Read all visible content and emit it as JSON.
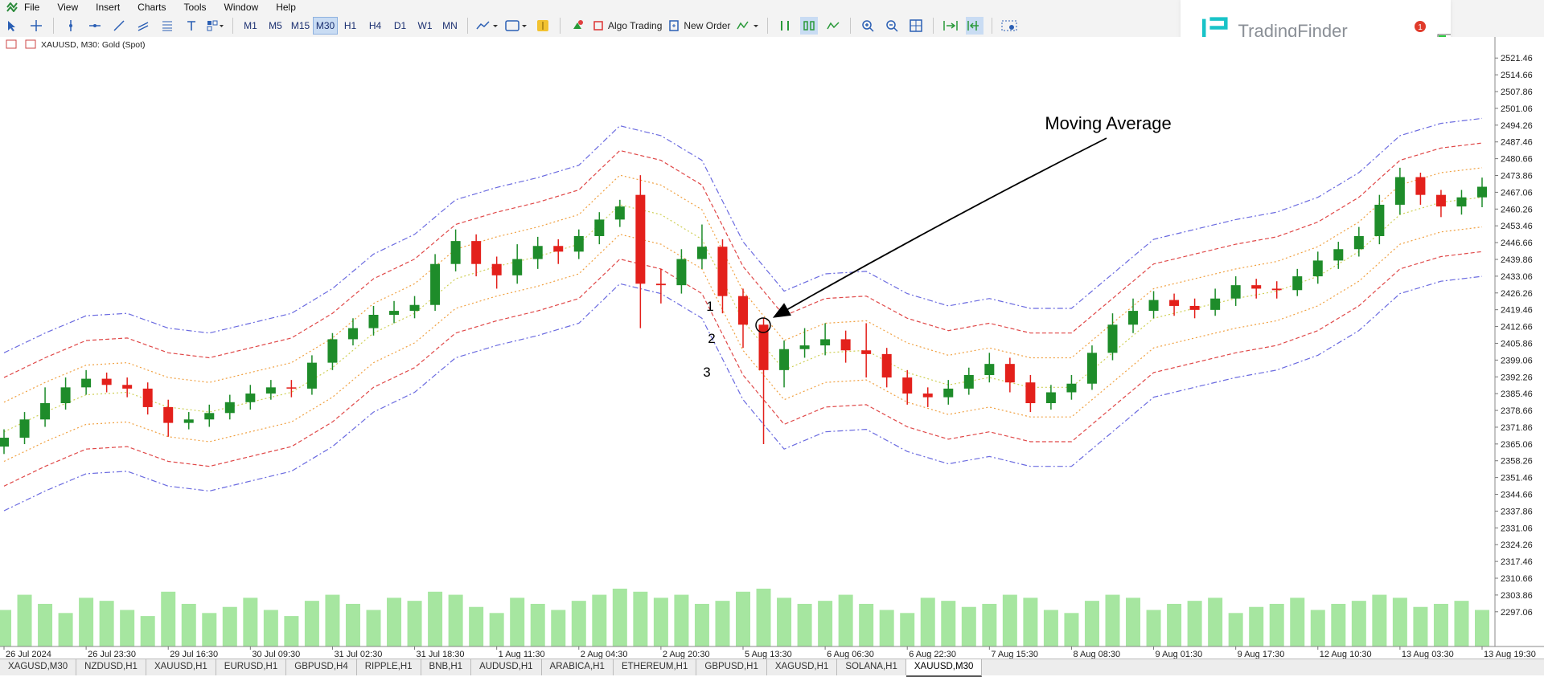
{
  "menu": [
    "File",
    "View",
    "Insert",
    "Charts",
    "Tools",
    "Window",
    "Help"
  ],
  "toolbar": {
    "timeframes": [
      "M1",
      "M5",
      "M15",
      "M30",
      "H1",
      "H4",
      "D1",
      "W1",
      "MN"
    ],
    "algo_trading": "Algo Trading",
    "new_order": "New Order"
  },
  "logo": "TradingFinder",
  "tabs": [
    "XAGUSD,M30",
    "NZDUSD,H1",
    "XAUUSD,H1",
    "EURUSD,H1",
    "GBPUSD,H4",
    "RIPPLE,H1",
    "BNB,H1",
    "AUDUSD,H1",
    "ARABICA,H1",
    "ETHEREUM,H1",
    "GBPUSD,H1",
    "XAGUSD,H1",
    "SOLANA,H1",
    "XAUUSD,M30"
  ],
  "chart_data": {
    "type": "candlestick",
    "symbol_label": "XAUUSD, M30:  Gold (Spot)",
    "categories": [
      "26 Jul 2024",
      null,
      null,
      null,
      "26 Jul 23:30",
      null,
      null,
      null,
      "29 Jul 16:30",
      null,
      null,
      null,
      "30 Jul 09:30",
      null,
      null,
      null,
      "31 Jul 02:30",
      null,
      null,
      null,
      "31 Jul 18:30",
      null,
      null,
      null,
      "1 Aug 11:30",
      null,
      null,
      null,
      "2 Aug 04:30",
      null,
      null,
      null,
      "2 Aug 20:30",
      null,
      null,
      null,
      "5 Aug 13:30",
      null,
      null,
      null,
      "6 Aug 06:30",
      null,
      null,
      null,
      "6 Aug 22:30",
      null,
      null,
      null,
      "7 Aug 15:30",
      null,
      null,
      null,
      "8 Aug 08:30",
      null,
      null,
      null,
      "9 Aug 01:30",
      null,
      null,
      null,
      "9 Aug 17:30",
      null,
      null,
      null,
      "12 Aug 10:30",
      null,
      null,
      null,
      "13 Aug 03:30",
      null,
      null,
      null,
      "13 Aug 19:30"
    ],
    "open": [
      2364,
      2367.6,
      2375,
      2381.6,
      2388,
      2391.5,
      2389,
      2387.5,
      2380,
      2373.6,
      2375,
      2377.6,
      2382,
      2385.5,
      2388,
      2387.5,
      2398,
      2407.5,
      2412,
      2417.4,
      2419,
      2421.4,
      2438,
      2447.3,
      2438,
      2433.4,
      2440,
      2445.3,
      2443,
      2449.3,
      2456,
      2466,
      2430,
      2429.4,
      2440,
      2445,
      2425,
      2413.4,
      2395,
      2403.5,
      2405,
      2407.5,
      2403,
      2401.5,
      2392,
      2385.5,
      2384,
      2387.5,
      2393,
      2397.5,
      2390,
      2381.6,
      2386,
      2389.5,
      2402,
      2413.4,
      2419,
      2423.4,
      2421,
      2419.4,
      2424,
      2429.4,
      2428,
      2427.4,
      2433,
      2439.4,
      2444,
      2449.3,
      2462,
      2473.2,
      2466,
      2461.3,
      2465
    ],
    "high": [
      2371,
      2378,
      2388,
      2392,
      2395,
      2394,
      2392,
      2390,
      2383,
      2378,
      2381,
      2385,
      2389,
      2391,
      2391,
      2401,
      2410,
      2416,
      2421,
      2423,
      2425,
      2442,
      2452,
      2450,
      2441,
      2446,
      2449,
      2448,
      2452,
      2459,
      2464,
      2474,
      2436,
      2444,
      2454,
      2448,
      2428,
      2416,
      2407,
      2412,
      2414,
      2411,
      2414,
      2404,
      2395,
      2388,
      2391,
      2396,
      2402,
      2400,
      2393,
      2389,
      2393,
      2405,
      2418,
      2424,
      2427,
      2426,
      2424,
      2428,
      2433,
      2432,
      2431,
      2436,
      2443,
      2447,
      2453,
      2466,
      2477,
      2475,
      2468,
      2468,
      2473
    ],
    "low": [
      2361,
      2365,
      2372,
      2379,
      2385,
      2386,
      2384,
      2377,
      2368,
      2371,
      2372,
      2375,
      2379,
      2383,
      2384,
      2385,
      2395,
      2405,
      2409,
      2414,
      2416,
      2419,
      2435,
      2433,
      2428,
      2430,
      2436,
      2438,
      2440,
      2446,
      2453,
      2412,
      2422,
      2426,
      2436,
      2418,
      2404,
      2365,
      2388,
      2400,
      2401,
      2398,
      2392,
      2388,
      2381,
      2380,
      2381,
      2385,
      2390,
      2386,
      2378,
      2379,
      2383,
      2387,
      2399,
      2410,
      2416,
      2417,
      2416,
      2417,
      2421,
      2424,
      2424,
      2425,
      2430,
      2436,
      2441,
      2446,
      2458,
      2462,
      2457,
      2458,
      2461
    ],
    "close": [
      2367.6,
      2375,
      2381.6,
      2388,
      2391.5,
      2389,
      2387.5,
      2380,
      2373.6,
      2375,
      2377.6,
      2382,
      2385.5,
      2388,
      2387.5,
      2398,
      2407.5,
      2412,
      2417.4,
      2419,
      2421.4,
      2438,
      2447.3,
      2438,
      2433.4,
      2440,
      2445.3,
      2443,
      2449.3,
      2456,
      2461.3,
      2430,
      2429.4,
      2440,
      2445,
      2425,
      2413.4,
      2395,
      2403.5,
      2405,
      2407.5,
      2403,
      2401.5,
      2392,
      2385.5,
      2384,
      2387.5,
      2393,
      2397.5,
      2390,
      2381.6,
      2386,
      2389.5,
      2402,
      2413.4,
      2419,
      2423.4,
      2421,
      2419.4,
      2424,
      2429.4,
      2428,
      2427.4,
      2433,
      2439.4,
      2444,
      2449.3,
      2462,
      2473.2,
      2466,
      2461.3,
      2465,
      2469.3
    ],
    "up_color": "#1e8c2a",
    "down_color": "#e3201b",
    "volume": [
      60,
      85,
      70,
      55,
      80,
      75,
      60,
      50,
      90,
      70,
      55,
      65,
      80,
      60,
      50,
      75,
      85,
      70,
      60,
      80,
      75,
      90,
      85,
      65,
      55,
      80,
      70,
      60,
      75,
      85,
      95,
      90,
      80,
      85,
      70,
      75,
      90,
      95,
      80,
      70,
      75,
      85,
      70,
      60,
      55,
      80,
      75,
      65,
      70,
      85,
      80,
      60,
      55,
      75,
      85,
      80,
      60,
      70,
      75,
      80,
      55,
      65,
      70,
      80,
      60,
      70,
      75,
      85,
      80,
      65,
      70,
      75,
      60
    ],
    "volume_color": "#a6e6a0",
    "bands": {
      "x": [
        0,
        2,
        4,
        6,
        8,
        10,
        12,
        14,
        16,
        18,
        20,
        22,
        24,
        26,
        28,
        30,
        32,
        34,
        36,
        38,
        40,
        42,
        44,
        46,
        48,
        50,
        52,
        54,
        56,
        58,
        60,
        62,
        64,
        66,
        68,
        70,
        72
      ],
      "series": [
        {
          "color": "#6b6be0",
          "values": [
            2402,
            2410,
            2417,
            2418,
            2412,
            2410,
            2414,
            2418,
            2428,
            2442,
            2450,
            2464,
            2469,
            2473,
            2478,
            2494,
            2490,
            2480,
            2447,
            2427,
            2434,
            2435,
            2426,
            2421,
            2424,
            2420,
            2420,
            2434,
            2448,
            2452,
            2456,
            2459,
            2465,
            2475,
            2490,
            2495,
            2497
          ]
        },
        {
          "color": "#e04848",
          "values": [
            2392,
            2400,
            2407,
            2408,
            2402,
            2400,
            2404,
            2408,
            2418,
            2432,
            2440,
            2454,
            2459,
            2463,
            2468,
            2484,
            2480,
            2470,
            2437,
            2417,
            2424,
            2425,
            2416,
            2411,
            2414,
            2410,
            2410,
            2424,
            2438,
            2442,
            2446,
            2449,
            2455,
            2465,
            2480,
            2485,
            2487
          ]
        },
        {
          "color": "#f0a040",
          "values": [
            2382,
            2390,
            2397,
            2398,
            2392,
            2390,
            2394,
            2398,
            2408,
            2422,
            2430,
            2444,
            2449,
            2453,
            2458,
            2474,
            2470,
            2460,
            2427,
            2407,
            2414,
            2415,
            2406,
            2401,
            2404,
            2400,
            2400,
            2414,
            2428,
            2432,
            2436,
            2439,
            2445,
            2455,
            2470,
            2475,
            2477
          ]
        },
        {
          "color": "#cfcf55",
          "values": [
            2370,
            2378,
            2385,
            2386,
            2380,
            2378,
            2382,
            2386,
            2396,
            2410,
            2418,
            2432,
            2437,
            2441,
            2446,
            2462,
            2458,
            2448,
            2415,
            2395,
            2402,
            2403,
            2394,
            2389,
            2392,
            2388,
            2388,
            2402,
            2416,
            2420,
            2424,
            2427,
            2433,
            2443,
            2458,
            2463,
            2465
          ]
        },
        {
          "color": "#f0a040",
          "values": [
            2358,
            2366,
            2373,
            2374,
            2368,
            2366,
            2370,
            2374,
            2384,
            2398,
            2406,
            2420,
            2425,
            2429,
            2434,
            2450,
            2446,
            2436,
            2403,
            2383,
            2390,
            2391,
            2382,
            2377,
            2380,
            2376,
            2376,
            2390,
            2404,
            2408,
            2412,
            2415,
            2421,
            2431,
            2446,
            2451,
            2453
          ]
        },
        {
          "color": "#e04848",
          "values": [
            2348,
            2356,
            2363,
            2364,
            2358,
            2356,
            2360,
            2364,
            2374,
            2388,
            2396,
            2410,
            2415,
            2419,
            2424,
            2440,
            2436,
            2426,
            2393,
            2373,
            2380,
            2381,
            2372,
            2367,
            2370,
            2366,
            2366,
            2380,
            2394,
            2398,
            2402,
            2405,
            2411,
            2421,
            2436,
            2441,
            2443
          ]
        },
        {
          "color": "#6b6be0",
          "values": [
            2338,
            2346,
            2353,
            2354,
            2348,
            2346,
            2350,
            2354,
            2364,
            2378,
            2386,
            2400,
            2405,
            2409,
            2414,
            2430,
            2426,
            2416,
            2383,
            2363,
            2370,
            2371,
            2362,
            2357,
            2360,
            2356,
            2356,
            2370,
            2384,
            2388,
            2392,
            2395,
            2401,
            2411,
            2426,
            2431,
            2433
          ]
        }
      ]
    },
    "ylim": [
      2283,
      2530
    ],
    "yticks": [
      2521.46,
      2514.66,
      2507.86,
      2501.06,
      2494.26,
      2487.46,
      2480.66,
      2473.86,
      2467.06,
      2460.26,
      2453.46,
      2446.66,
      2439.86,
      2433.06,
      2426.26,
      2419.46,
      2412.66,
      2405.86,
      2399.06,
      2392.26,
      2385.46,
      2378.66,
      2371.86,
      2365.06,
      2358.26,
      2351.46,
      2344.66,
      2337.86,
      2331.06,
      2324.26,
      2317.46,
      2310.66,
      2303.86,
      2297.06
    ],
    "annotation": "Moving Average",
    "band_labels": [
      "1",
      "2",
      "3"
    ]
  }
}
